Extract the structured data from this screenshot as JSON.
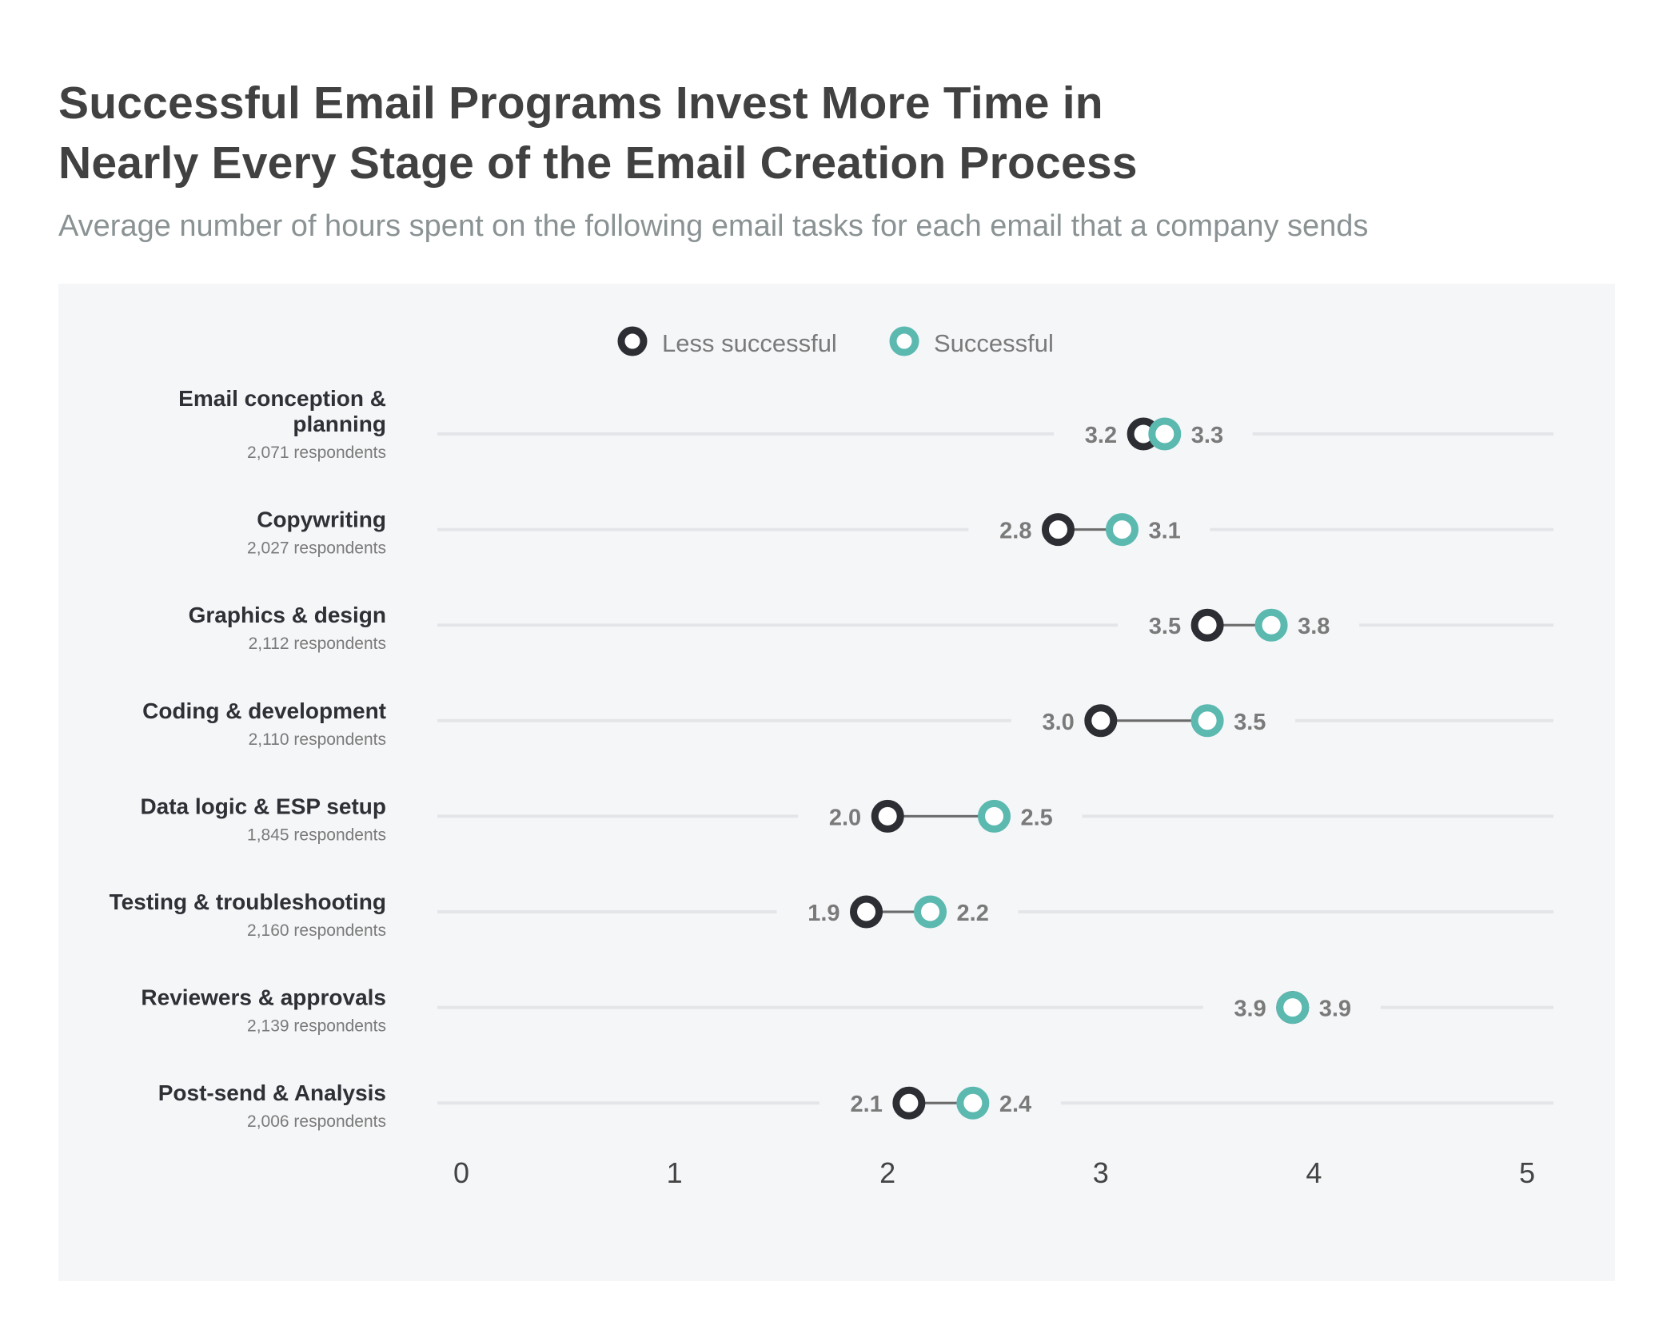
{
  "header": {
    "title_line1": "Successful Email Programs Invest More Time in",
    "title_line2": "Nearly Every Stage of the Email Creation Process",
    "subtitle": "Average number of hours spent on the following email tasks for each email that a company sends"
  },
  "colors": {
    "less_successful": "#2d2e33",
    "successful": "#5bb9b0",
    "panel_bg": "#f5f6f8",
    "track": "#e3e5e8",
    "connector": "#6b6b6b",
    "value_label": "#7a7a7a",
    "category_label": "#2f3035",
    "respondents_label": "#7a7a7a",
    "tick_label": "#444444"
  },
  "chart_data": {
    "type": "dumbbell",
    "title": "Successful Email Programs Invest More Time in Nearly Every Stage of the Email Creation Process",
    "subtitle": "Average number of hours spent on the following email tasks for each email that a company sends",
    "xlim": [
      0,
      5
    ],
    "x_ticks": [
      "0",
      "1",
      "2",
      "3",
      "4",
      "5"
    ],
    "legend": {
      "placement": "top-center",
      "entries": [
        {
          "name": "Less successful",
          "color": "#2d2e33"
        },
        {
          "name": "Successful",
          "color": "#5bb9b0"
        }
      ]
    },
    "categories": [
      {
        "label_lines": [
          "Email conception &",
          "planning"
        ],
        "respondents": "2,071 respondents",
        "less": 3.2,
        "less_label": "3.2",
        "successful": 3.3,
        "successful_label": "3.3"
      },
      {
        "label_lines": [
          "Copywriting"
        ],
        "respondents": "2,027 respondents",
        "less": 2.8,
        "less_label": "2.8",
        "successful": 3.1,
        "successful_label": "3.1"
      },
      {
        "label_lines": [
          "Graphics & design"
        ],
        "respondents": "2,112 respondents",
        "less": 3.5,
        "less_label": "3.5",
        "successful": 3.8,
        "successful_label": "3.8"
      },
      {
        "label_lines": [
          "Coding & development"
        ],
        "respondents": "2,110 respondents",
        "less": 3.0,
        "less_label": "3.0",
        "successful": 3.5,
        "successful_label": "3.5"
      },
      {
        "label_lines": [
          "Data logic & ESP setup"
        ],
        "respondents": "1,845 respondents",
        "less": 2.0,
        "less_label": "2.0",
        "successful": 2.5,
        "successful_label": "2.5"
      },
      {
        "label_lines": [
          "Testing &  troubleshooting"
        ],
        "respondents": "2,160 respondents",
        "less": 1.9,
        "less_label": "1.9",
        "successful": 2.2,
        "successful_label": "2.2"
      },
      {
        "label_lines": [
          "Reviewers & approvals"
        ],
        "respondents": "2,139 respondents",
        "less": 3.9,
        "less_label": "3.9",
        "successful": 3.9,
        "successful_label": "3.9"
      },
      {
        "label_lines": [
          "Post-send & Analysis"
        ],
        "respondents": "2,006 respondents",
        "less": 2.1,
        "less_label": "2.1",
        "successful": 2.4,
        "successful_label": "2.4"
      }
    ]
  }
}
